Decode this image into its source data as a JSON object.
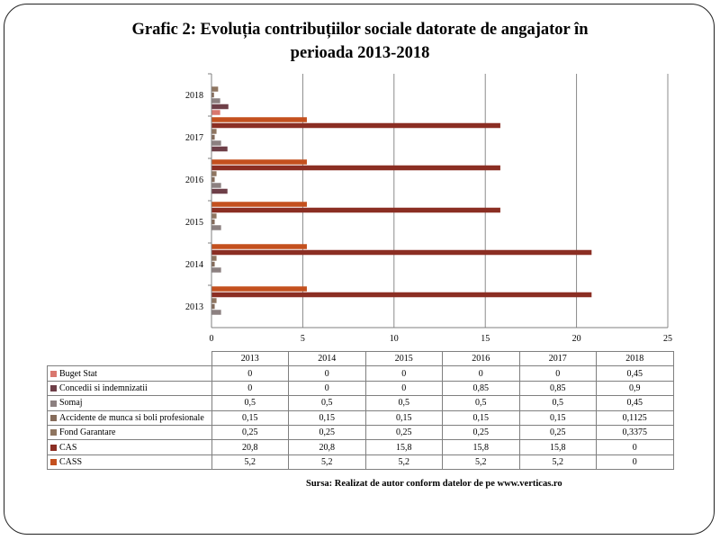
{
  "title_line1": "Grafic 2: Evoluția contribuțiilor sociale datorate de angajator în",
  "title_line2": "perioada 2013-2018",
  "source": "Sursa: Realizat de autor conform datelor de pe www.verticas.ro",
  "chart_data": {
    "type": "bar",
    "orientation": "horizontal",
    "title": "Grafic 2: Evoluția contribuțiilor sociale datorate de angajator în perioada 2013-2018",
    "categories": [
      "2013",
      "2014",
      "2015",
      "2016",
      "2017",
      "2018"
    ],
    "series": [
      {
        "name": "Buget Stat",
        "color": "#d9776e",
        "values": [
          0,
          0,
          0,
          0,
          0,
          0.45
        ],
        "labels": [
          "0",
          "0",
          "0",
          "0",
          "0",
          "0,45"
        ]
      },
      {
        "name": "Concedii si indemnizatii",
        "color": "#6e3f48",
        "values": [
          0,
          0,
          0,
          0.85,
          0.85,
          0.9
        ],
        "labels": [
          "0",
          "0",
          "0",
          "0,85",
          "0,85",
          "0,9"
        ]
      },
      {
        "name": "Somaj",
        "color": "#8c8080",
        "values": [
          0.5,
          0.5,
          0.5,
          0.5,
          0.5,
          0.45
        ],
        "labels": [
          "0,5",
          "0,5",
          "0,5",
          "0,5",
          "0,5",
          "0,45"
        ]
      },
      {
        "name": "Accidente de munca si boli profesionale",
        "color": "#856b5a",
        "values": [
          0.15,
          0.15,
          0.15,
          0.15,
          0.15,
          0.1125
        ],
        "labels": [
          "0,15",
          "0,15",
          "0,15",
          "0,15",
          "0,15",
          "0,1125"
        ]
      },
      {
        "name": "Fond Garantare",
        "color": "#8f7560",
        "values": [
          0.25,
          0.25,
          0.25,
          0.25,
          0.25,
          0.3375
        ],
        "labels": [
          "0,25",
          "0,25",
          "0,25",
          "0,25",
          "0,25",
          "0,3375"
        ]
      },
      {
        "name": "CAS",
        "color": "#8b2e23",
        "values": [
          20.8,
          20.8,
          15.8,
          15.8,
          15.8,
          0
        ],
        "labels": [
          "20,8",
          "20,8",
          "15,8",
          "15,8",
          "15,8",
          "0"
        ]
      },
      {
        "name": "CASS",
        "color": "#c4501e",
        "values": [
          5.2,
          5.2,
          5.2,
          5.2,
          5.2,
          0
        ],
        "labels": [
          "5,2",
          "5,2",
          "5,2",
          "5,2",
          "5,2",
          "0"
        ]
      }
    ],
    "xlim": [
      0,
      25
    ],
    "xticks": [
      "0",
      "5",
      "10",
      "15",
      "20",
      "25"
    ],
    "grid": true,
    "legend": "data table below chart"
  }
}
